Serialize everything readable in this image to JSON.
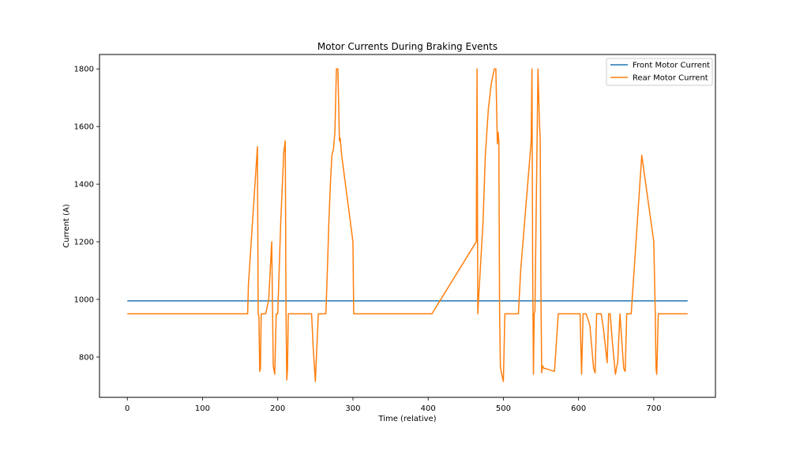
{
  "chart_data": {
    "type": "line",
    "title": "Motor Currents During Braking Events",
    "xlabel": "Time (relative)",
    "ylabel": "Current (A)",
    "xlim": [
      -37,
      782
    ],
    "ylim": [
      660,
      1850
    ],
    "xticks": [
      0,
      100,
      200,
      300,
      400,
      500,
      600,
      700
    ],
    "yticks": [
      800,
      1000,
      1200,
      1400,
      1600,
      1800
    ],
    "grid": false,
    "legend_position": "top-right",
    "series": [
      {
        "name": "Front Motor Current",
        "color": "#1f77b4",
        "x": [
          0,
          745
        ],
        "y": [
          995,
          995
        ]
      },
      {
        "name": "Rear Motor Current",
        "color": "#ff7f0e",
        "x": [
          0,
          160,
          161,
          173,
          174,
          175,
          176,
          177,
          178,
          180,
          182,
          184,
          188,
          192,
          194,
          196,
          198,
          200,
          204,
          208,
          210,
          211,
          212,
          213,
          214,
          215,
          217,
          220,
          245,
          247,
          250,
          254,
          260,
          264,
          266,
          268,
          270,
          272,
          274,
          276,
          278,
          279,
          280,
          282,
          283,
          284,
          285,
          300,
          301,
          305,
          320,
          405,
          464,
          465,
          466,
          467,
          473,
          476,
          480,
          484,
          488,
          490,
          492,
          493,
          494,
          495,
          496,
          497,
          500,
          502,
          520,
          523,
          537,
          538,
          539,
          540,
          541,
          542,
          546,
          548,
          549,
          550,
          551,
          552,
          554,
          556,
          568,
          573,
          600,
          602,
          604,
          606,
          608,
          610,
          615,
          620,
          622,
          624,
          628,
          630,
          633,
          638,
          640,
          642,
          645,
          649,
          651,
          652,
          655,
          660,
          662,
          664,
          666,
          670,
          684,
          700,
          702,
          703,
          704,
          706,
          710,
          745
        ],
        "y": [
          950,
          950,
          1050,
          1530,
          950,
          940,
          750,
          760,
          950,
          950,
          950,
          950,
          1000,
          1200,
          770,
          740,
          950,
          950,
          1270,
          1510,
          1550,
          950,
          720,
          760,
          950,
          950,
          950,
          950,
          950,
          840,
          715,
          950,
          950,
          950,
          1100,
          1270,
          1400,
          1500,
          1520,
          1580,
          1800,
          1800,
          1800,
          1550,
          1560,
          1530,
          1500,
          1200,
          950,
          950,
          950,
          950,
          1200,
          1800,
          950,
          1000,
          1270,
          1500,
          1660,
          1750,
          1800,
          1800,
          1540,
          1580,
          1550,
          950,
          770,
          750,
          715,
          950,
          950,
          1100,
          1550,
          1800,
          1100,
          740,
          950,
          960,
          1800,
          1610,
          1560,
          1000,
          745,
          770,
          760,
          760,
          750,
          950,
          950,
          950,
          740,
          950,
          950,
          950,
          910,
          760,
          745,
          950,
          950,
          950,
          900,
          780,
          950,
          950,
          850,
          740,
          770,
          780,
          950,
          760,
          750,
          950,
          950,
          950,
          1500,
          1200,
          950,
          760,
          740,
          950,
          950,
          950
        ]
      }
    ]
  }
}
